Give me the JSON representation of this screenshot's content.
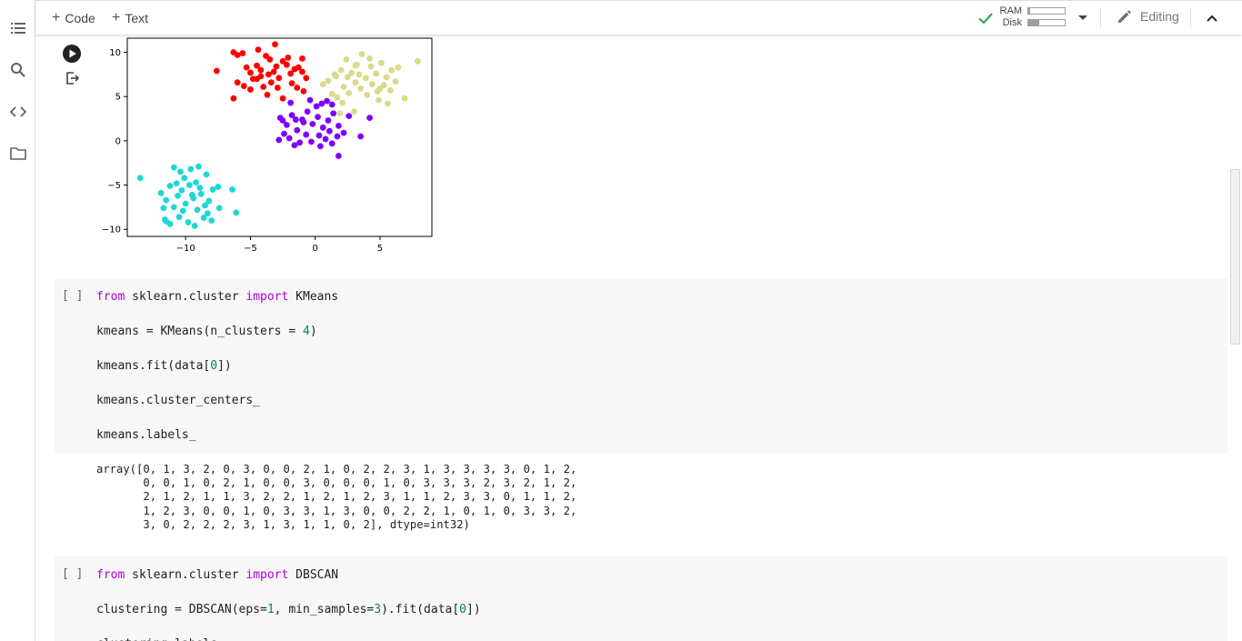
{
  "toolbar": {
    "code_label": "Code",
    "text_label": "Text",
    "ram_label": "RAM",
    "disk_label": "Disk",
    "ram_usage": 0.05,
    "disk_usage": 0.3,
    "editing_label": "Editing"
  },
  "rail": {
    "icons": [
      "toc-icon",
      "search-icon",
      "code-snippets-icon",
      "folder-icon"
    ]
  },
  "cells": [
    {
      "bracket": "[ ]",
      "lines": [
        [
          {
            "t": "from",
            "c": "kw"
          },
          {
            "t": " sklearn.cluster "
          },
          {
            "t": "import",
            "c": "kw"
          },
          {
            "t": " KMeans"
          }
        ],
        [],
        [
          {
            "t": "kmeans = KMeans(n_clusters = "
          },
          {
            "t": "4",
            "c": "num"
          },
          {
            "t": ")"
          }
        ],
        [],
        [
          {
            "t": "kmeans.fit(data["
          },
          {
            "t": "0",
            "c": "num"
          },
          {
            "t": "])"
          }
        ],
        [],
        [
          {
            "t": "kmeans.cluster_centers_"
          }
        ],
        [],
        [
          {
            "t": "kmeans.labels_"
          }
        ]
      ],
      "output": "array([0, 1, 3, 2, 0, 3, 0, 0, 2, 1, 0, 2, 2, 3, 1, 3, 3, 3, 3, 0, 1, 2,\n       0, 0, 1, 0, 2, 1, 0, 0, 3, 0, 0, 0, 1, 0, 3, 3, 3, 2, 3, 2, 1, 2,\n       2, 1, 2, 1, 1, 3, 2, 2, 1, 2, 1, 2, 3, 1, 1, 2, 3, 3, 0, 1, 1, 2,\n       1, 2, 3, 0, 0, 1, 0, 3, 3, 1, 3, 0, 0, 2, 2, 1, 0, 1, 0, 3, 3, 2,\n       3, 0, 2, 2, 2, 3, 1, 3, 1, 1, 0, 2], dtype=int32)"
    },
    {
      "bracket": "[ ]",
      "lines": [
        [
          {
            "t": "from",
            "c": "kw"
          },
          {
            "t": " sklearn.cluster "
          },
          {
            "t": "import",
            "c": "kw"
          },
          {
            "t": " DBSCAN"
          }
        ],
        [],
        [
          {
            "t": "clustering = DBSCAN(eps="
          },
          {
            "t": "1",
            "c": "num"
          },
          {
            "t": ", min_samples="
          },
          {
            "t": "3",
            "c": "num"
          },
          {
            "t": ").fit(data["
          },
          {
            "t": "0",
            "c": "num"
          },
          {
            "t": "])"
          }
        ],
        [],
        [
          {
            "t": "clustering.labels_"
          }
        ]
      ]
    }
  ],
  "chart_data": {
    "type": "scatter",
    "xlim": [
      -14.5,
      9
    ],
    "ylim": [
      -10.8,
      11.6
    ],
    "xticks": [
      -10,
      -5,
      0,
      5
    ],
    "yticks": [
      -10,
      -5,
      0,
      5,
      10
    ],
    "xtick_labels": [
      "−10",
      "−5",
      "0",
      "5"
    ],
    "ytick_labels": [
      "−10",
      "−5",
      "0",
      "5",
      "10"
    ],
    "grid": false,
    "series": [
      {
        "color": "#ff0000",
        "points": [
          [
            -6.3,
            10
          ],
          [
            -6.0,
            9.7
          ],
          [
            -5.6,
            9.9
          ],
          [
            -5.3,
            8.3
          ],
          [
            -5.0,
            7.7
          ],
          [
            -4.8,
            7.0
          ],
          [
            -4.5,
            8.5
          ],
          [
            -4.2,
            8.0
          ],
          [
            -3.8,
            9.6
          ],
          [
            -3.5,
            9.2
          ],
          [
            -3.2,
            7.8
          ],
          [
            -3.0,
            8.4
          ],
          [
            -2.8,
            7.1
          ],
          [
            -2.5,
            9.0
          ],
          [
            -2.2,
            8.6
          ],
          [
            -1.9,
            7.6
          ],
          [
            -1.6,
            8.1
          ],
          [
            -1.3,
            8.3
          ],
          [
            -1.0,
            7.8
          ],
          [
            -0.7,
            7.1
          ],
          [
            -6.0,
            6.6
          ],
          [
            -5.5,
            6.2
          ],
          [
            -5.0,
            5.8
          ],
          [
            -4.5,
            7.0
          ],
          [
            -4.0,
            6.1
          ],
          [
            -3.7,
            5.2
          ],
          [
            -3.4,
            6.6
          ],
          [
            -2.9,
            6.0
          ],
          [
            -2.5,
            4.8
          ],
          [
            -1.8,
            6.5
          ],
          [
            -1.4,
            6.0
          ],
          [
            -0.9,
            5.6
          ],
          [
            -7.6,
            7.9
          ],
          [
            -6.3,
            4.8
          ],
          [
            -4.4,
            10.3
          ],
          [
            -3.1,
            10.9
          ],
          [
            -2.1,
            9.4
          ],
          [
            -1.0,
            9.3
          ],
          [
            -4.2,
            7.3
          ],
          [
            -3.6,
            7.5
          ]
        ]
      },
      {
        "color": "#dada88",
        "points": [
          [
            1.0,
            6.8
          ],
          [
            1.5,
            7.5
          ],
          [
            2.0,
            8.0
          ],
          [
            2.4,
            9.2
          ],
          [
            2.8,
            7.7
          ],
          [
            3.2,
            8.6
          ],
          [
            3.6,
            9.8
          ],
          [
            3.9,
            7.1
          ],
          [
            4.3,
            8.4
          ],
          [
            4.7,
            7.6
          ],
          [
            5.1,
            8.8
          ],
          [
            5.5,
            7.2
          ],
          [
            5.9,
            8.0
          ],
          [
            2.2,
            6.1
          ],
          [
            2.6,
            5.4
          ],
          [
            3.1,
            6.6
          ],
          [
            3.5,
            5.9
          ],
          [
            4.0,
            5.2
          ],
          [
            4.4,
            6.4
          ],
          [
            4.8,
            5.6
          ],
          [
            5.3,
            6.3
          ],
          [
            5.8,
            5.7
          ],
          [
            6.2,
            6.7
          ],
          [
            1.7,
            4.9
          ],
          [
            2.1,
            4.3
          ],
          [
            3.0,
            3.3
          ],
          [
            4.9,
            4.6
          ],
          [
            5.6,
            4.2
          ],
          [
            6.9,
            4.8
          ],
          [
            7.9,
            9.0
          ],
          [
            1.3,
            5.3
          ],
          [
            6.4,
            8.3
          ],
          [
            0.6,
            6.4
          ],
          [
            3.4,
            7.5
          ],
          [
            2.5,
            7.2
          ],
          [
            5.0,
            5.9
          ],
          [
            1.9,
            3.1
          ],
          [
            4.2,
            9.3
          ],
          [
            3.1,
            8.5
          ],
          [
            1.6,
            7.3
          ]
        ]
      },
      {
        "color": "#7f00ff",
        "points": [
          [
            -2.7,
            2.6
          ],
          [
            -2.2,
            1.8
          ],
          [
            -1.8,
            2.9
          ],
          [
            -1.4,
            1.2
          ],
          [
            -1.0,
            2.4
          ],
          [
            -0.6,
            3.3
          ],
          [
            -0.2,
            1.9
          ],
          [
            0.2,
            2.7
          ],
          [
            0.6,
            1.5
          ],
          [
            1.0,
            2.3
          ],
          [
            1.4,
            3.1
          ],
          [
            1.8,
            1.7
          ],
          [
            2.2,
            0.9
          ],
          [
            -2.4,
            0.8
          ],
          [
            -2.0,
            0.3
          ],
          [
            -1.2,
            -0.2
          ],
          [
            -0.7,
            0.7
          ],
          [
            -0.3,
            -0.1
          ],
          [
            0.3,
            0.6
          ],
          [
            0.8,
            0.2
          ],
          [
            1.3,
            -0.3
          ],
          [
            1.7,
            0.5
          ],
          [
            -2.8,
            0.1
          ],
          [
            -1.6,
            -0.5
          ],
          [
            0.1,
            3.9
          ],
          [
            0.5,
            4.2
          ],
          [
            -0.4,
            4.6
          ],
          [
            0.9,
            4.5
          ],
          [
            1.3,
            4.1
          ],
          [
            1.8,
            -1.7
          ],
          [
            -1.9,
            4.3
          ],
          [
            3.5,
            0.5
          ],
          [
            4.2,
            2.6
          ],
          [
            2.6,
            2.8
          ],
          [
            -0.9,
            2.1
          ],
          [
            -1.5,
            2.4
          ],
          [
            -2.5,
            2.3
          ],
          [
            0.4,
            -0.6
          ],
          [
            1.1,
            1.1
          ]
        ]
      },
      {
        "color": "#1cd7d7",
        "points": [
          [
            -13.5,
            -4.2
          ],
          [
            -11.9,
            -5.9
          ],
          [
            -11.5,
            -6.7
          ],
          [
            -11.2,
            -5.1
          ],
          [
            -10.9,
            -7.5
          ],
          [
            -10.6,
            -6.2
          ],
          [
            -10.3,
            -5.6
          ],
          [
            -10.0,
            -7.1
          ],
          [
            -9.7,
            -5.0
          ],
          [
            -9.4,
            -6.5
          ],
          [
            -9.1,
            -7.8
          ],
          [
            -8.8,
            -6.0
          ],
          [
            -8.5,
            -7.3
          ],
          [
            -8.2,
            -6.8
          ],
          [
            -7.9,
            -5.5
          ],
          [
            -11.6,
            -8.9
          ],
          [
            -11.2,
            -9.4
          ],
          [
            -10.5,
            -8.6
          ],
          [
            -9.8,
            -9.2
          ],
          [
            -9.3,
            -9.6
          ],
          [
            -8.6,
            -8.7
          ],
          [
            -8.0,
            -9.0
          ],
          [
            -10.9,
            -3.0
          ],
          [
            -10.4,
            -3.5
          ],
          [
            -9.6,
            -3.2
          ],
          [
            -9.0,
            -2.9
          ],
          [
            -8.4,
            -3.8
          ],
          [
            -10.1,
            -4.2
          ],
          [
            -9.2,
            -4.7
          ],
          [
            -7.5,
            -5.2
          ],
          [
            -6.4,
            -5.5
          ],
          [
            -6.1,
            -8.1
          ],
          [
            -7.4,
            -7.6
          ],
          [
            -11.7,
            -7.6
          ],
          [
            -10.7,
            -4.8
          ],
          [
            -9.5,
            -6.1
          ],
          [
            -8.9,
            -5.3
          ],
          [
            -8.3,
            -8.2
          ],
          [
            -10.2,
            -7.9
          ],
          [
            -11.5,
            -9.1
          ]
        ]
      }
    ]
  }
}
